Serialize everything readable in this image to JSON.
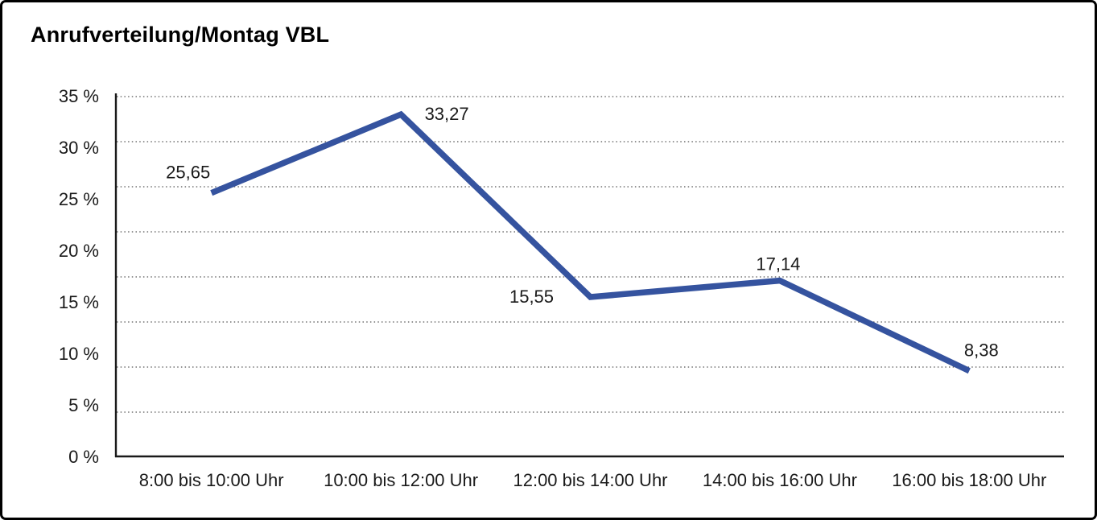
{
  "title": "Anrufverteilung/Montag VBL",
  "chart_data": {
    "type": "line",
    "title": "Anrufverteilung/Montag VBL",
    "categories": [
      "8:00 bis 10:00 Uhr",
      "10:00 bis 12:00 Uhr",
      "12:00 bis 14:00 Uhr",
      "14:00 bis 16:00 Uhr",
      "16:00 bis 18:00 Uhr"
    ],
    "values": [
      25.65,
      33.27,
      15.55,
      17.14,
      8.38
    ],
    "value_labels": [
      "25,65",
      "33,27",
      "15,55",
      "17,14",
      "8,38"
    ],
    "y_ticks": [
      "35 %",
      "30 %",
      "25 %",
      "20 %",
      "15 %",
      "10 %",
      "5 %",
      "0 %"
    ],
    "ylim": [
      0,
      35
    ],
    "y_tick_step": 5,
    "xlabel": "",
    "ylabel": "",
    "legend_position": "none",
    "grid": "horizontal-dotted",
    "line_color": "#35539F",
    "axis_color": "#1a1a1a",
    "grid_color": "#555555"
  }
}
